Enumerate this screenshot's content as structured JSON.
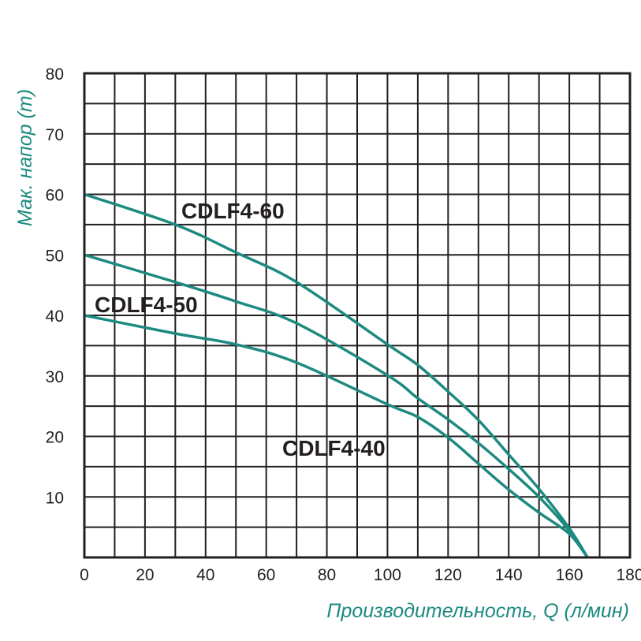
{
  "chart_data": {
    "type": "line",
    "xlabel": "Производительность, Q (л/мин)",
    "ylabel": "Мак. напор (m)",
    "xlim": [
      0,
      180
    ],
    "ylim": [
      0,
      80
    ],
    "xticks": [
      0,
      20,
      40,
      60,
      80,
      100,
      120,
      140,
      160,
      180
    ],
    "yticks": [
      10,
      20,
      30,
      40,
      50,
      60,
      70,
      80
    ],
    "grid": true,
    "colors": {
      "series": "#1d8a80",
      "grid": "#231f20",
      "label": "#231f20"
    },
    "series": [
      {
        "name": "CDLF4-60",
        "x": [
          0,
          30,
          50,
          70,
          100,
          110,
          120,
          130,
          140,
          150,
          160,
          166
        ],
        "y": [
          60,
          55,
          50.4,
          45.5,
          35.2,
          31.8,
          27.4,
          22.7,
          17,
          11.3,
          4.8,
          0
        ]
      },
      {
        "name": "CDLF4-50",
        "x": [
          0,
          30,
          50,
          70,
          100,
          110,
          120,
          130,
          140,
          150,
          160,
          166
        ],
        "y": [
          50,
          45.5,
          42.3,
          38.7,
          30.1,
          26.3,
          22.8,
          18.9,
          14.6,
          10,
          4.4,
          0
        ]
      },
      {
        "name": "CDLF4-40",
        "x": [
          0,
          30,
          50,
          70,
          100,
          110,
          120,
          130,
          140,
          150,
          160,
          166
        ],
        "y": [
          40,
          37,
          35.2,
          32.2,
          25.3,
          23.2,
          19.8,
          15.5,
          11.2,
          7.4,
          3.9,
          0
        ]
      }
    ]
  }
}
